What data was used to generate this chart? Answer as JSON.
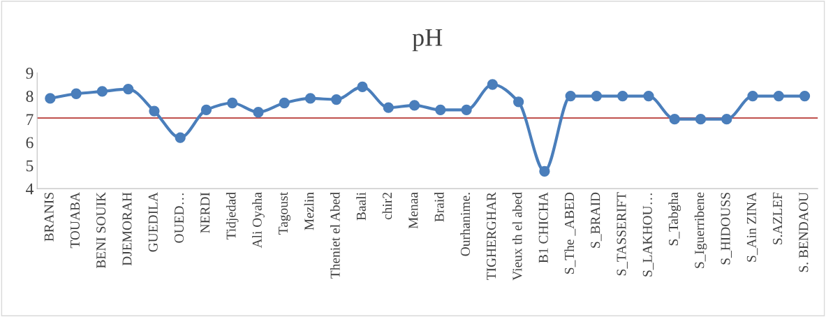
{
  "chart_data": {
    "type": "line",
    "title": "pH",
    "categories": [
      "BRANIS",
      "TOUABA",
      "BENI SOUIK",
      "DJEMORAH",
      "GUEDILA",
      "OUED…",
      "NERDI",
      "Tidjedad",
      "Ali Oyaha",
      "Tagoust",
      "Mezlin",
      "Theniet el Abed",
      "Baali",
      "chir2",
      "Menaa",
      "Braid",
      "Ourhanime.",
      "TIGHERGHAR",
      "Vieux th el abed",
      "B1 CHICHA",
      "S_The _ABED",
      "S_BRAID",
      "S_TASSERIFT",
      "S_LAKHOU…",
      "S_Tabgha",
      "S_Iguerribene",
      "S_HIDOUSS",
      "S_Ain ZINA",
      "S.AZLEF",
      "S. BENDAOU"
    ],
    "series": [
      {
        "color": "#4a7ebb",
        "values": [
          7.9,
          8.1,
          8.2,
          8.3,
          7.35,
          6.2,
          7.4,
          7.7,
          7.3,
          7.7,
          7.9,
          7.85,
          8.4,
          7.5,
          7.6,
          7.4,
          7.4,
          8.5,
          7.75,
          4.75,
          8.0,
          8.0,
          8.0,
          8.0,
          7.0,
          7.0,
          7.0,
          8.0,
          8.0,
          8.0
        ]
      }
    ],
    "ylim": [
      4,
      9
    ],
    "yticks": [
      4,
      5,
      6,
      7,
      8,
      9
    ],
    "marker": "circle",
    "line_style": "solid",
    "grid": false,
    "legend": false,
    "ref_lines": [
      {
        "axis": "y",
        "value": 7.05,
        "color": "#c0504d"
      }
    ]
  }
}
